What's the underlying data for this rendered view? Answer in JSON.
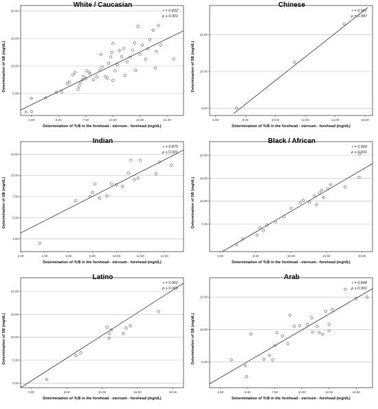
{
  "chart_data": [
    {
      "type": "scatter",
      "title": "White / Caucasian",
      "stats": {
        "r": "r = 0.822",
        "p": "p ≤ 0.001"
      },
      "xlabel": "Determination of TcB in the forehead - sternum - forehead (mg/dL)",
      "ylabel": "Determination of SB (mg/dL)",
      "xlim": [
        1.5,
        16.5
      ],
      "ylim": [
        1.0,
        21.0
      ],
      "xticks": [
        2.5,
        5.0,
        7.5,
        10.0,
        12.5,
        15.0
      ],
      "xtick_labels": [
        "2.50",
        "5.00",
        "7.50",
        "10.00",
        "12.50",
        "15.00"
      ],
      "yticks": [
        5.0,
        10.0,
        15.0,
        20.0
      ],
      "ytick_labels": [
        "5.00",
        "10.00",
        "15.00",
        "20.00"
      ],
      "grid": true,
      "fit_line": [
        [
          1.5,
          2.0
        ],
        [
          16.5,
          16.4
        ]
      ],
      "points": [
        [
          2.0,
          1.6
        ],
        [
          2.5,
          1.7
        ],
        [
          2.5,
          4.1
        ],
        [
          3.8,
          4.2
        ],
        [
          4.8,
          5.2
        ],
        [
          5.3,
          5.3
        ],
        [
          5.8,
          6.8
        ],
        [
          6.0,
          7.1
        ],
        [
          6.3,
          8.4
        ],
        [
          6.5,
          8.8
        ],
        [
          6.8,
          5.8
        ],
        [
          6.9,
          6.4
        ],
        [
          7.0,
          7.0
        ],
        [
          7.2,
          7.5
        ],
        [
          7.3,
          8.1
        ],
        [
          7.5,
          7.7
        ],
        [
          7.6,
          9.1
        ],
        [
          7.8,
          8.9
        ],
        [
          7.9,
          8.6
        ],
        [
          8.2,
          7.5
        ],
        [
          8.5,
          8.0
        ],
        [
          8.8,
          9.2
        ],
        [
          8.9,
          12.1
        ],
        [
          9.0,
          9.8
        ],
        [
          9.3,
          8.1
        ],
        [
          9.5,
          7.8
        ],
        [
          9.6,
          10.5
        ],
        [
          9.8,
          11.6
        ],
        [
          9.9,
          12.5
        ],
        [
          10.0,
          14.1
        ],
        [
          10.0,
          7.4
        ],
        [
          10.2,
          9.1
        ],
        [
          10.4,
          10.2
        ],
        [
          10.6,
          12.8
        ],
        [
          10.8,
          11.7
        ],
        [
          11.0,
          13.2
        ],
        [
          11.1,
          8.3
        ],
        [
          11.3,
          10.8
        ],
        [
          11.6,
          11.6
        ],
        [
          11.8,
          12.9
        ],
        [
          12.0,
          14.2
        ],
        [
          12.1,
          9.2
        ],
        [
          12.3,
          17.2
        ],
        [
          12.5,
          12.1
        ],
        [
          12.7,
          13.8
        ],
        [
          13.0,
          11.2
        ],
        [
          13.2,
          13.1
        ],
        [
          13.4,
          14.8
        ],
        [
          13.7,
          16.5
        ],
        [
          13.9,
          9.6
        ],
        [
          14.0,
          12.6
        ],
        [
          14.2,
          17.4
        ],
        [
          14.4,
          13.8
        ],
        [
          15.6,
          11.3
        ]
      ]
    },
    {
      "type": "scatter",
      "title": "Chinese",
      "stats": {
        "r": "r = 0.991",
        "p": "p = 0.087"
      },
      "xlabel": "Determination of TcB in the forehead - sternum - forehead (mg/dL)",
      "ylabel": "Determination of SB (mg/dL)",
      "xlim": [
        5.6,
        16.5
      ],
      "ylim": [
        7.6,
        13.6
      ],
      "xticks": [
        6.0,
        8.0,
        10.0,
        12.0,
        14.0,
        16.0
      ],
      "xtick_labels": [
        "6.00",
        "8.00",
        "10.00",
        "12.00",
        "14.00",
        "16.00"
      ],
      "yticks": [
        8.0,
        10.0,
        12.0
      ],
      "ytick_labels": [
        "8.00",
        "10.00",
        "12.00"
      ],
      "grid": true,
      "fit_line": [
        [
          7.2,
          7.7
        ],
        [
          16.2,
          13.5
        ]
      ],
      "points": [
        [
          7.4,
          8.0
        ],
        [
          11.3,
          10.5
        ],
        [
          14.6,
          12.6
        ]
      ]
    },
    {
      "type": "scatter",
      "title": "Indian",
      "stats": {
        "r": "r = 0.875",
        "p": "p ≤ 0.001"
      },
      "xlabel": "Determination of TcB in the forehead - sternum - forehead (mg/dL)",
      "ylabel": "Determination of SB (mg/dL)",
      "xlim": [
        2.0,
        15.6
      ],
      "ylim": [
        1.0,
        14.0
      ],
      "xticks": [
        2.0,
        4.0,
        6.0,
        8.0,
        10.0,
        12.0,
        14.0
      ],
      "xtick_labels": [
        "2.00",
        "4.00",
        "6.00",
        "8.00",
        "10.00",
        "12.00",
        "14.00"
      ],
      "yticks": [
        2.5,
        5.0,
        7.5,
        10.0,
        12.5
      ],
      "ytick_labels": [
        "2.50",
        "5.00",
        "7.50",
        "10.00",
        "12.50"
      ],
      "grid": true,
      "fit_line": [
        [
          2.0,
          3.2
        ],
        [
          15.6,
          13.0
        ]
      ],
      "points": [
        [
          3.6,
          2.0
        ],
        [
          6.6,
          7.0
        ],
        [
          7.8,
          7.5
        ],
        [
          8.0,
          8.0
        ],
        [
          8.2,
          9.0
        ],
        [
          8.6,
          7.3
        ],
        [
          9.2,
          7.6
        ],
        [
          9.6,
          9.0
        ],
        [
          10.0,
          8.9
        ],
        [
          10.5,
          8.7
        ],
        [
          11.0,
          10.3
        ],
        [
          11.2,
          11.8
        ],
        [
          11.5,
          9.5
        ],
        [
          11.8,
          9.7
        ],
        [
          12.0,
          11.8
        ],
        [
          13.3,
          10.2
        ],
        [
          13.6,
          11.6
        ],
        [
          14.6,
          11.2
        ]
      ]
    },
    {
      "type": "scatter",
      "title": "Black / African",
      "stats": {
        "r": "r = 0.964",
        "p": "p ≤ 0.001"
      },
      "xlabel": "Determination of TcB in the forehead - sternum - forehead (mg/dL)",
      "ylabel": "Determination of SB (mg/dL)",
      "xlim": [
        -1.5,
        21.5
      ],
      "ylim": [
        -1.0,
        23.0
      ],
      "xticks": [
        0.0,
        5.0,
        10.0,
        15.0,
        20.0
      ],
      "xtick_labels": [
        "0.00",
        "5.00",
        "10.00",
        "15.00",
        "20.00"
      ],
      "yticks": [
        5.0,
        10.0,
        15.0,
        20.0
      ],
      "ytick_labels": [
        "5.00",
        "10.00",
        "15.00",
        "20.00"
      ],
      "grid": true,
      "fit_line": [
        [
          0.3,
          -1.0
        ],
        [
          21.5,
          18.2
        ]
      ],
      "points": [
        [
          2.3,
          0.5
        ],
        [
          3.2,
          1.8
        ],
        [
          5.2,
          2.6
        ],
        [
          5.6,
          4.2
        ],
        [
          6.1,
          3.6
        ],
        [
          6.6,
          4.8
        ],
        [
          7.8,
          5.5
        ],
        [
          9.0,
          6.6
        ],
        [
          10.0,
          8.5
        ],
        [
          11.3,
          9.6
        ],
        [
          11.7,
          10.2
        ],
        [
          12.6,
          9.8
        ],
        [
          13.3,
          11.2
        ],
        [
          13.6,
          9.2
        ],
        [
          14.0,
          11.8
        ],
        [
          14.3,
          12.4
        ],
        [
          14.6,
          10.8
        ],
        [
          15.2,
          12.7
        ],
        [
          15.6,
          13.6
        ],
        [
          17.6,
          13.1
        ],
        [
          19.6,
          15.2
        ],
        [
          19.7,
          20.3
        ]
      ]
    },
    {
      "type": "scatter",
      "title": "Latino",
      "stats": {
        "r": "r = 0.962",
        "p": "p ≤ 0.001"
      },
      "xlabel": "Determination of TcB in the forehead - sternum - forehead (mg/dL)",
      "ylabel": "Determination of SB (mg/dL)",
      "xlim": [
        -1.5,
        21.5
      ],
      "ylim": [
        -1.0,
        23.0
      ],
      "xticks": [
        0.0,
        5.0,
        10.0,
        15.0,
        20.0
      ],
      "xtick_labels": [
        "0.00",
        "5.00",
        "10.00",
        "15.00",
        "20.00"
      ],
      "yticks": [
        0.0,
        5.0,
        10.0,
        15.0,
        20.0
      ],
      "ytick_labels": [
        "0.00",
        "5.00",
        "10.00",
        "15.00",
        "20.00"
      ],
      "grid": true,
      "fit_line": [
        [
          -1.5,
          -1.0
        ],
        [
          21.5,
          21.8
        ]
      ],
      "points": [
        [
          2.2,
          0.8
        ],
        [
          6.3,
          6.0
        ],
        [
          7.0,
          6.6
        ],
        [
          10.7,
          12.2
        ],
        [
          11.0,
          9.8
        ],
        [
          11.0,
          10.8
        ],
        [
          11.3,
          11.6
        ],
        [
          13.0,
          10.8
        ],
        [
          13.4,
          12.0
        ],
        [
          14.0,
          12.5
        ],
        [
          18.0,
          15.6
        ]
      ]
    },
    {
      "type": "scatter",
      "title": "Arab",
      "stats": {
        "r": "r = 0.844",
        "p": "p ≤ 0.001"
      },
      "xlabel": "Determination of TcB in the forehead - sternum - forehead (mg/dL)",
      "ylabel": "Determination of SB (mg/dL)",
      "xlim": [
        1.5,
        16.5
      ],
      "ylim": [
        1.0,
        18.0
      ],
      "xticks": [
        2.5,
        5.0,
        7.5,
        10.0,
        12.5,
        15.0
      ],
      "xtick_labels": [
        "2.50",
        "5.00",
        "7.50",
        "10.00",
        "12.50",
        "15.00"
      ],
      "yticks": [
        5.0,
        10.0,
        15.0
      ],
      "ytick_labels": [
        "5.00",
        "10.00",
        "15.00"
      ],
      "grid": true,
      "fit_line": [
        [
          1.5,
          1.6
        ],
        [
          16.5,
          16.3
        ]
      ],
      "points": [
        [
          3.5,
          5.3
        ],
        [
          4.8,
          4.4
        ],
        [
          4.9,
          2.7
        ],
        [
          5.3,
          9.3
        ],
        [
          6.5,
          5.4
        ],
        [
          7.0,
          6.0
        ],
        [
          7.3,
          5.3
        ],
        [
          7.5,
          7.5
        ],
        [
          7.7,
          9.5
        ],
        [
          8.2,
          9.0
        ],
        [
          8.7,
          7.8
        ],
        [
          8.9,
          12.2
        ],
        [
          9.3,
          10.5
        ],
        [
          9.8,
          10.6
        ],
        [
          10.5,
          10.8
        ],
        [
          10.9,
          11.8
        ],
        [
          11.0,
          9.6
        ],
        [
          11.4,
          10.5
        ],
        [
          11.6,
          9.5
        ],
        [
          11.9,
          9.2
        ],
        [
          12.2,
          12.8
        ],
        [
          12.5,
          9.8
        ],
        [
          12.5,
          10.8
        ],
        [
          12.8,
          13.1
        ],
        [
          14.0,
          16.2
        ],
        [
          15.0,
          14.8
        ],
        [
          16.0,
          15.0
        ]
      ]
    }
  ]
}
